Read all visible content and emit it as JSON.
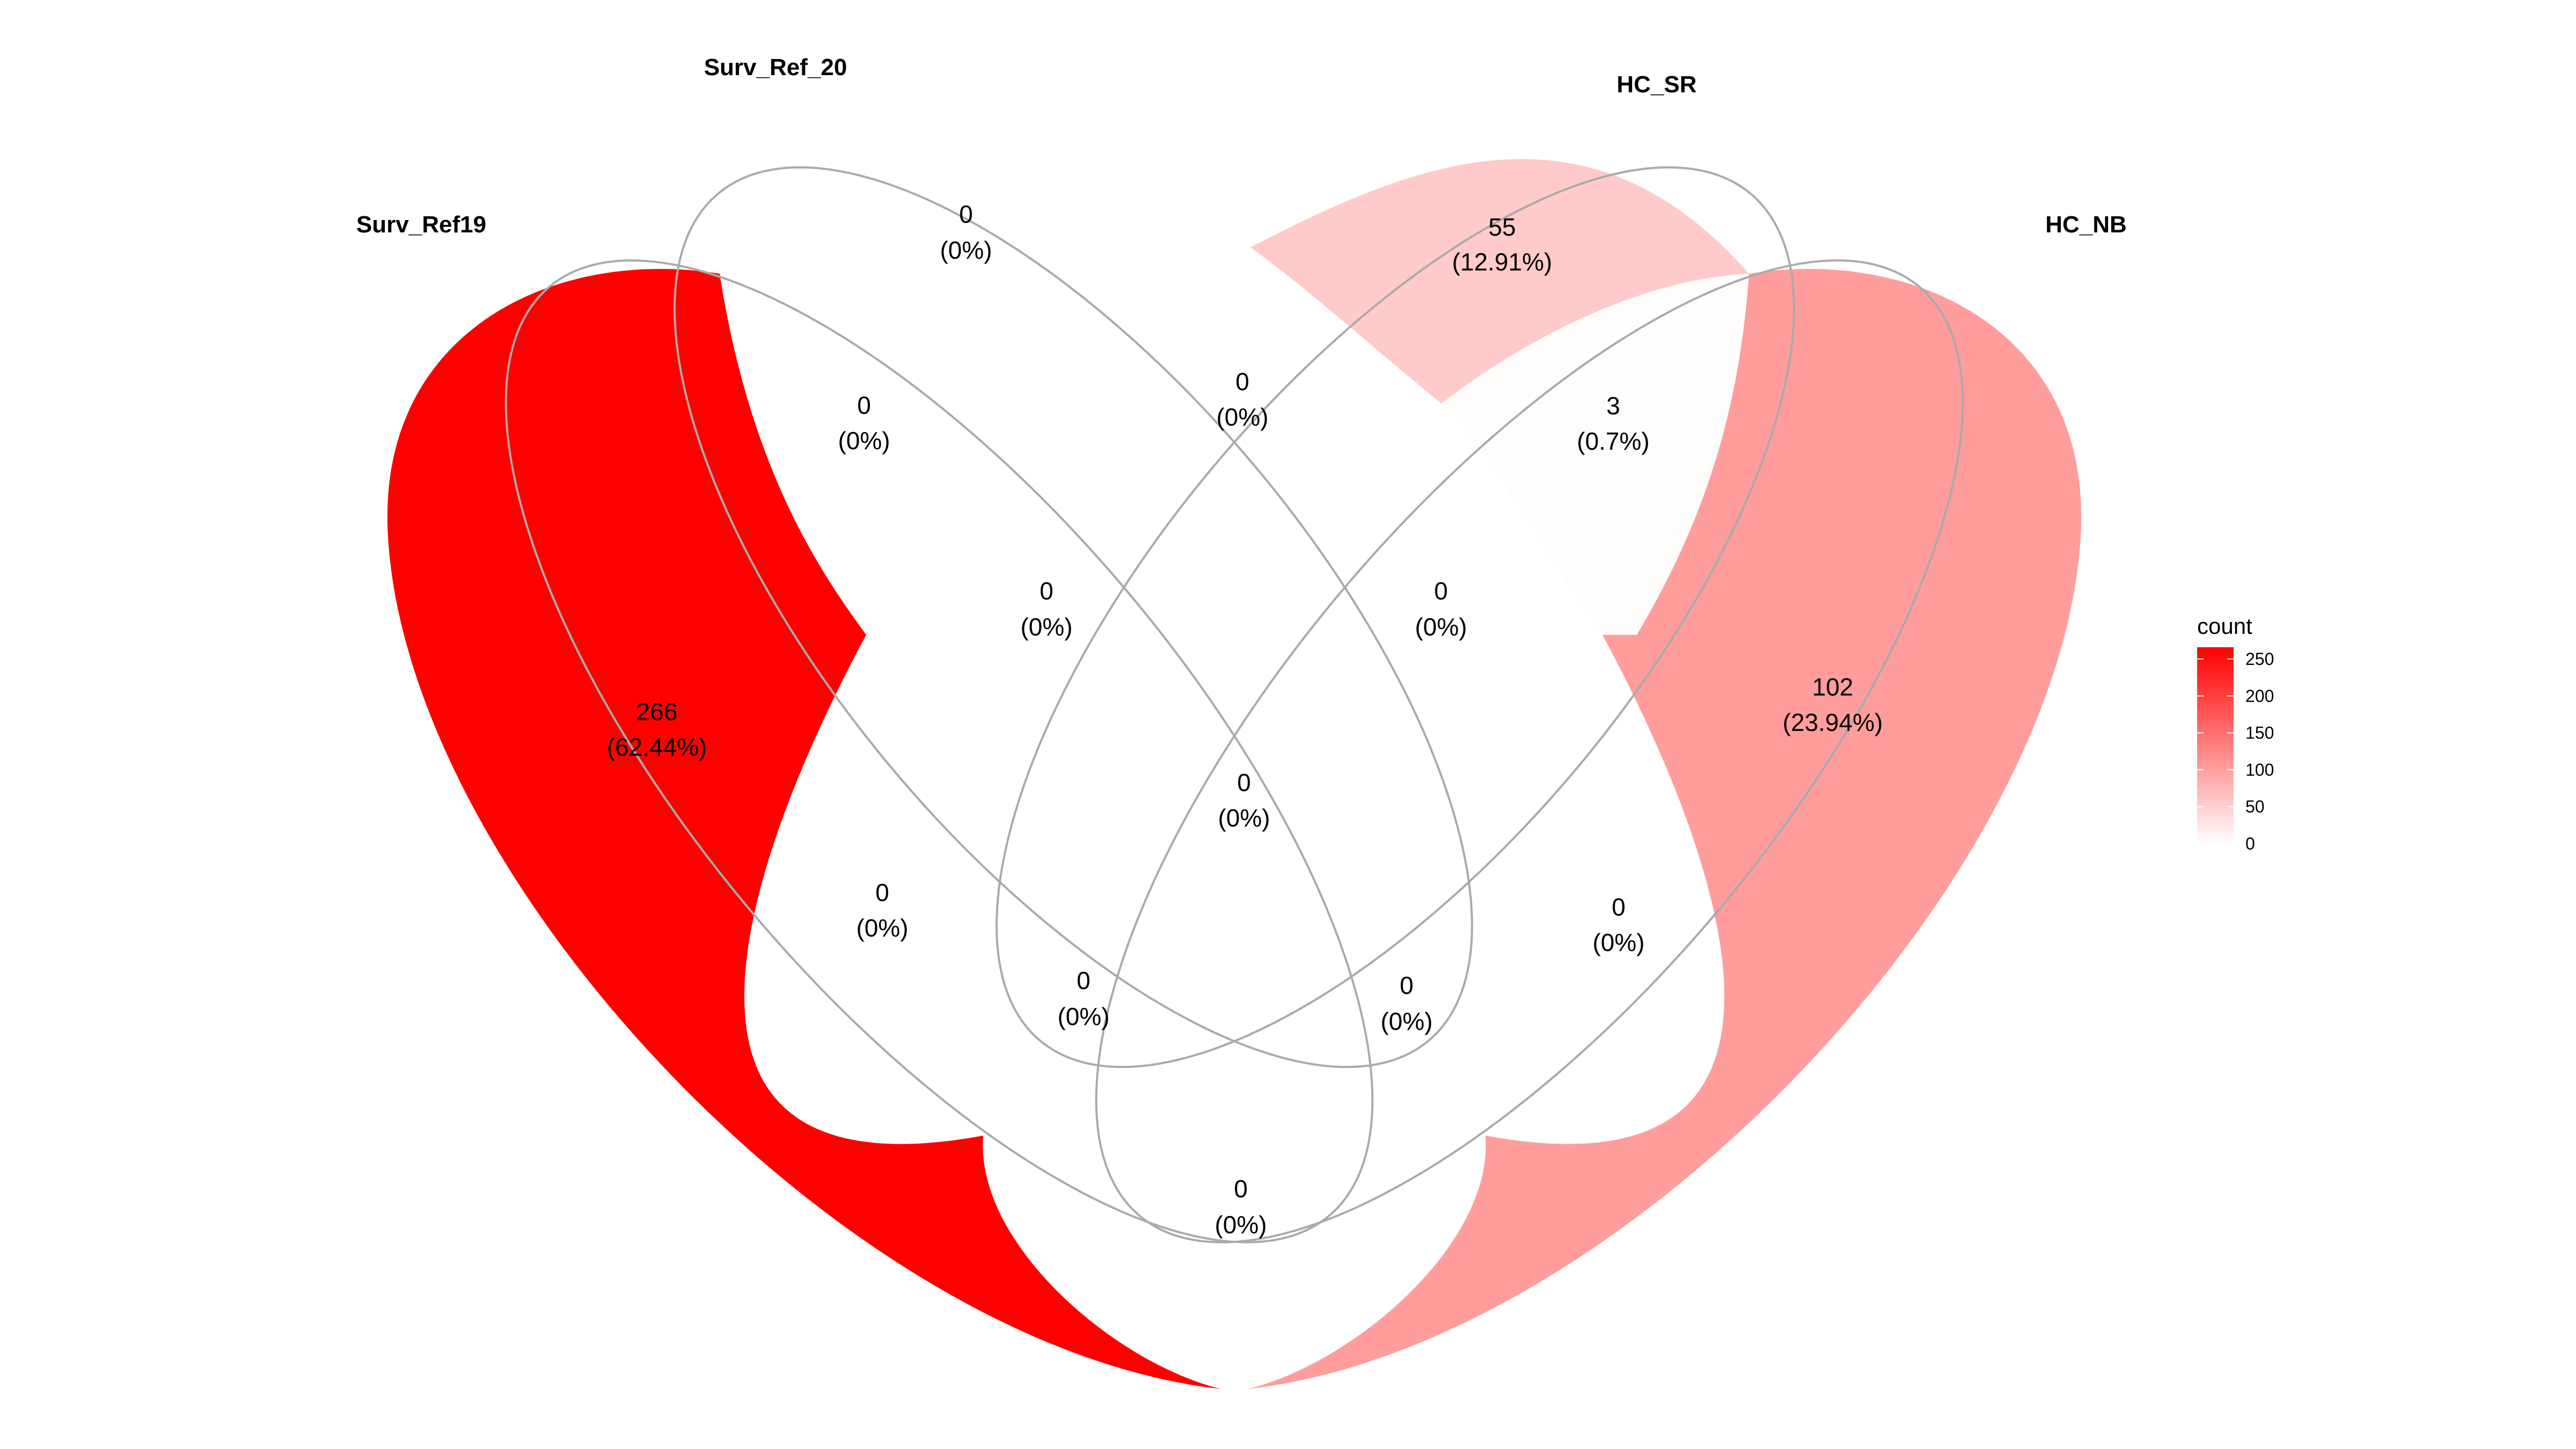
{
  "sets": [
    {
      "id": "A",
      "name": "Surv_Ref19"
    },
    {
      "id": "B",
      "name": "Surv_Ref_20"
    },
    {
      "id": "C",
      "name": "HC_SR"
    },
    {
      "id": "D",
      "name": "HC_NB"
    }
  ],
  "regions": [
    {
      "key": "A",
      "count": "266",
      "percent": "(62.44%)",
      "value": 266
    },
    {
      "key": "B",
      "count": "0",
      "percent": "(0%)",
      "value": 0
    },
    {
      "key": "C",
      "count": "55",
      "percent": "(12.91%)",
      "value": 55
    },
    {
      "key": "D",
      "count": "102",
      "percent": "(23.94%)",
      "value": 102
    },
    {
      "key": "AB",
      "count": "0",
      "percent": "(0%)",
      "value": 0
    },
    {
      "key": "BC",
      "count": "0",
      "percent": "(0%)",
      "value": 0
    },
    {
      "key": "CD",
      "count": "3",
      "percent": "(0.7%)",
      "value": 3
    },
    {
      "key": "ABC",
      "count": "0",
      "percent": "(0%)",
      "value": 0
    },
    {
      "key": "BCD",
      "count": "0",
      "percent": "(0%)",
      "value": 0
    },
    {
      "key": "ABCD",
      "count": "0",
      "percent": "(0%)",
      "value": 0
    },
    {
      "key": "AC",
      "count": "0",
      "percent": "(0%)",
      "value": 0
    },
    {
      "key": "BD",
      "count": "0",
      "percent": "(0%)",
      "value": 0
    },
    {
      "key": "ACD",
      "count": "0",
      "percent": "(0%)",
      "value": 0
    },
    {
      "key": "ABD",
      "count": "0",
      "percent": "(0%)",
      "value": 0
    },
    {
      "key": "AD",
      "count": "0",
      "percent": "(0%)",
      "value": 0
    }
  ],
  "legend": {
    "title": "count",
    "ticks": [
      "250",
      "200",
      "150",
      "100",
      "50",
      "0"
    ],
    "min": 0,
    "max": 266,
    "color_low": "#ffffff",
    "color_high": "#ff0000"
  },
  "outline_color": "#aaaaaa"
}
